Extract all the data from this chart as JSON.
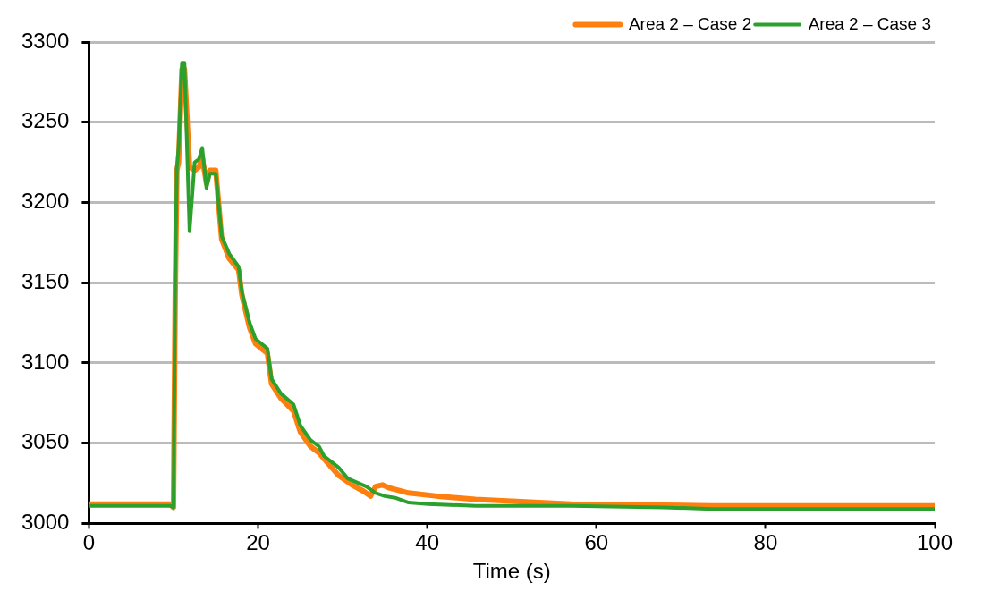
{
  "chart_data": {
    "type": "line",
    "xlabel": "Time (s)",
    "xlim": [
      0,
      100
    ],
    "xticks": [
      0,
      20,
      40,
      60,
      80,
      100
    ],
    "ylim": [
      3000,
      3300
    ],
    "yticks": [
      3000,
      3050,
      3100,
      3150,
      3200,
      3250,
      3300
    ],
    "grid": "y",
    "legend": "top right",
    "marker": "none",
    "line_style": "solid",
    "series": [
      {
        "name": "Area 2 – Case 2",
        "color": "#ff7f0e",
        "x": [
          0,
          9.6,
          10,
          10.2,
          10.4,
          10.6,
          11,
          11.3,
          11.9,
          12.5,
          13,
          13.4,
          13.9,
          14.3,
          15,
          15.7,
          16.6,
          17.7,
          18.1,
          19,
          19.7,
          21.1,
          21.6,
          22.7,
          24.2,
          25,
          26.2,
          27.2,
          29.5,
          31.1,
          32.5,
          33.3,
          33.9,
          34.7,
          35.6,
          37.8,
          41.2,
          45.7,
          57,
          73.7,
          100
        ],
        "values": [
          3012,
          3012,
          3010,
          3140,
          3220,
          3225,
          3283,
          3283,
          3222,
          3220,
          3222,
          3228,
          3212,
          3220,
          3220,
          3177,
          3165,
          3158,
          3142,
          3122,
          3112,
          3106,
          3087,
          3078,
          3070,
          3057,
          3048,
          3044,
          3030,
          3024,
          3020,
          3017,
          3023,
          3024,
          3022,
          3019,
          3017,
          3015,
          3012,
          3011,
          3011
        ]
      },
      {
        "name": "Area 2 – Case 3",
        "color": "#2ca02c",
        "x": [
          0,
          9.6,
          10,
          10.2,
          10.4,
          10.6,
          11,
          11.3,
          11.9,
          12.5,
          13,
          13.4,
          13.9,
          14.3,
          15,
          15.7,
          16.6,
          17.7,
          18.1,
          19,
          19.7,
          21.1,
          21.6,
          22.7,
          24.2,
          25,
          26.2,
          27.2,
          27.8,
          29.5,
          30.6,
          32.8,
          33.9,
          35,
          36.2,
          37.8,
          40.1,
          45.7,
          57,
          68,
          73.7,
          100
        ],
        "values": [
          3011,
          3011,
          3010,
          3155,
          3222,
          3234,
          3287,
          3287,
          3182,
          3225,
          3227,
          3234,
          3209,
          3218,
          3218,
          3179,
          3168,
          3160,
          3144,
          3125,
          3115,
          3109,
          3090,
          3081,
          3074,
          3061,
          3052,
          3048,
          3042,
          3035,
          3028,
          3023,
          3019,
          3017,
          3016,
          3013,
          3012,
          3011,
          3011,
          3010,
          3009,
          3009
        ]
      }
    ]
  }
}
